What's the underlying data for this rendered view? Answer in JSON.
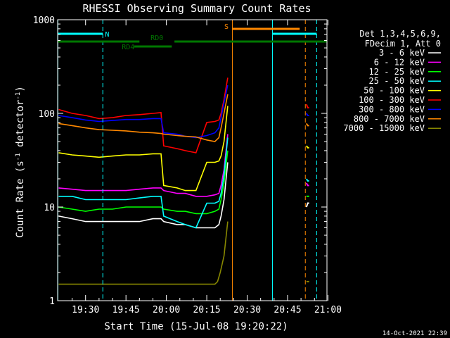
{
  "chart_data": {
    "type": "line",
    "title": "RHESSI Observing Summary Count Rates",
    "xlabel": "Start Time (15-Jul-08 19:20:22)",
    "ylabel_parts": [
      "Count Rate (s",
      "-1",
      " detector",
      "-1",
      ")"
    ],
    "yscale": "log",
    "ylim": [
      1,
      1000
    ],
    "xlim_min": [
      -0.37,
      99.63
    ],
    "x_ticks": [
      {
        "m": 10,
        "label": "19:30"
      },
      {
        "m": 25,
        "label": "19:45"
      },
      {
        "m": 40,
        "label": "20:00"
      },
      {
        "m": 55,
        "label": "20:15"
      },
      {
        "m": 70,
        "label": "20:30"
      },
      {
        "m": 85,
        "label": "20:45"
      },
      {
        "m": 100,
        "label": "21:00"
      }
    ],
    "y_ticks": [
      {
        "v": 1,
        "label": "1"
      },
      {
        "v": 10,
        "label": "10"
      },
      {
        "v": 100,
        "label": "100"
      },
      {
        "v": 1000,
        "label": "1000"
      }
    ],
    "legend_header": [
      "Det 1,3,4,5,6,9,",
      "FDecim 1, Att 0"
    ],
    "legend_position": "right",
    "date_stamp": "14-Oct-2021 22:39",
    "series": [
      {
        "name": "3 - 6 keV",
        "color": "#ffffff",
        "x": [
          0,
          5,
          10,
          15,
          20,
          25,
          30,
          35,
          38,
          39,
          44,
          47,
          51,
          55,
          58,
          59.5,
          60.3,
          61.4,
          62.8
        ],
        "y": [
          8,
          7.5,
          7,
          7,
          7,
          7,
          7,
          7.5,
          7.5,
          7,
          6.5,
          6.5,
          6,
          6,
          6,
          6.5,
          8,
          12,
          30
        ],
        "x2": [
          92,
          92.5,
          93
        ],
        "y2": [
          10,
          11,
          11
        ]
      },
      {
        "name": "6 - 12 keV",
        "color": "#ff00ff",
        "x": [
          0,
          5,
          10,
          15,
          20,
          25,
          30,
          35,
          38,
          39,
          44,
          47,
          51,
          55,
          58,
          59.5,
          60.3,
          61.4,
          62.8
        ],
        "y": [
          16,
          15.5,
          15,
          15,
          15,
          15,
          15.5,
          16,
          16,
          15,
          14,
          14,
          13,
          13,
          13.5,
          14,
          17,
          25,
          60
        ],
        "x2": [
          92,
          92.5,
          93
        ],
        "y2": [
          18,
          17,
          17
        ]
      },
      {
        "name": "12 - 25 keV",
        "color": "#00ff00",
        "x": [
          0,
          5,
          10,
          15,
          20,
          25,
          30,
          35,
          38,
          39,
          44,
          47,
          51,
          55,
          58,
          59.5,
          60.3,
          61.4,
          62.8
        ],
        "y": [
          10,
          9.5,
          9,
          9.5,
          9.5,
          10,
          10,
          10,
          10,
          9.5,
          9,
          9,
          8.5,
          8.5,
          9,
          9.5,
          12,
          18,
          40
        ],
        "x2": [
          92,
          92.5,
          93
        ],
        "y2": [
          13,
          13,
          13
        ]
      },
      {
        "name": "25 - 50 keV",
        "color": "#00ffff",
        "x": [
          0,
          5,
          10,
          15,
          20,
          25,
          30,
          35,
          38,
          39,
          44,
          47,
          51,
          55,
          58,
          59.5,
          60.3,
          61.4,
          62.8
        ],
        "y": [
          13,
          13,
          12,
          12,
          12,
          12,
          12.5,
          13,
          13,
          8,
          7,
          6.5,
          6,
          11,
          11,
          11.5,
          14,
          22,
          55
        ],
        "x2": [
          92,
          92.5,
          93
        ],
        "y2": [
          20,
          19,
          19
        ]
      },
      {
        "name": "50 - 100 keV",
        "color": "#ffff00",
        "x": [
          0,
          5,
          10,
          15,
          20,
          25,
          30,
          35,
          38,
          39,
          44,
          47,
          51,
          55,
          58,
          59.5,
          60.3,
          61.4,
          62.8
        ],
        "y": [
          38,
          36,
          35,
          34,
          35,
          36,
          36,
          37,
          37,
          17,
          16,
          15,
          15,
          30,
          30,
          31,
          35,
          50,
          120
        ],
        "x2": [
          92,
          92.5,
          93
        ],
        "y2": [
          45,
          43,
          43
        ]
      },
      {
        "name": "100 - 300 keV",
        "color": "#ff0000",
        "x": [
          0,
          5,
          10,
          15,
          20,
          25,
          30,
          35,
          38,
          39,
          44,
          47,
          51,
          55,
          58,
          59.5,
          60.3,
          61.4,
          62.8
        ],
        "y": [
          110,
          100,
          95,
          88,
          90,
          95,
          97,
          100,
          102,
          45,
          42,
          40,
          38,
          80,
          82,
          85,
          100,
          140,
          240
        ],
        "x2": [
          92,
          92.5,
          93
        ],
        "y2": [
          125,
          115,
          115
        ]
      },
      {
        "name": "300 - 800 keV",
        "color": "#0000ff",
        "x": [
          0,
          5,
          10,
          15,
          20,
          25,
          30,
          35,
          38,
          39,
          44,
          47,
          51,
          55,
          58,
          59.5,
          60.3,
          61.4,
          62.8
        ],
        "y": [
          95,
          90,
          85,
          82,
          84,
          86,
          86,
          88,
          88,
          62,
          60,
          57,
          55,
          58,
          62,
          70,
          90,
          130,
          200
        ],
        "x2": [
          92,
          92.5,
          93
        ],
        "y2": [
          100,
          95,
          95
        ]
      },
      {
        "name": "800 - 7000 keV",
        "color": "#ff8800",
        "x": [
          0,
          5,
          10,
          15,
          20,
          25,
          30,
          35,
          38,
          39,
          44,
          47,
          51,
          55,
          58,
          59.5,
          60.3,
          61.4,
          62.8
        ],
        "y": [
          78,
          74,
          70,
          67,
          66,
          65,
          63,
          62,
          61,
          60,
          58,
          57,
          56,
          52,
          50,
          55,
          70,
          100,
          160
        ],
        "x2": [
          92,
          92.5,
          93
        ],
        "y2": [
          78,
          74,
          74
        ]
      },
      {
        "name": "7000 - 15000 keV",
        "color": "#888800",
        "x": [
          0,
          10,
          20,
          30,
          40,
          50,
          55,
          58,
          59,
          60,
          61.4,
          62.8
        ],
        "y": [
          1.5,
          1.5,
          1.5,
          1.5,
          1.5,
          1.5,
          1.5,
          1.5,
          1.6,
          2,
          3,
          7
        ],
        "x2": [
          92,
          92.5,
          93
        ],
        "y2": [
          1.6,
          1.6,
          1.6
        ]
      }
    ],
    "state_bars": [
      {
        "label": "N",
        "color": "#00ffff",
        "segments": [
          [
            -0.37,
            16.4
          ],
          [
            79.4,
            95.8
          ]
        ],
        "label_at": 18
      },
      {
        "label": "S",
        "color": "#ff8800",
        "segments": [
          [
            64.5,
            89.5
          ]
        ],
        "label_at": 62.3
      },
      {
        "label": "RD0",
        "color": "#007700",
        "segments": [
          [
            -0.37,
            30
          ],
          [
            43,
            99.63
          ]
        ],
        "label_at": 36.5
      },
      {
        "label": "RD4",
        "color": "#007700",
        "segments": [
          [
            28,
            42
          ]
        ],
        "label_at": 25.8
      }
    ],
    "vlines": [
      {
        "m": -0.3,
        "color": "#00ffff",
        "style": "solid"
      },
      {
        "m": 16.4,
        "color": "#00ffff",
        "style": "dashed"
      },
      {
        "m": 64.5,
        "color": "#ff8800",
        "style": "solid"
      },
      {
        "m": 79.4,
        "color": "#00ffff",
        "style": "solid"
      },
      {
        "m": 91.6,
        "color": "#ff8800",
        "style": "dashed"
      },
      {
        "m": 95.8,
        "color": "#00ffff",
        "style": "dashed"
      }
    ]
  }
}
